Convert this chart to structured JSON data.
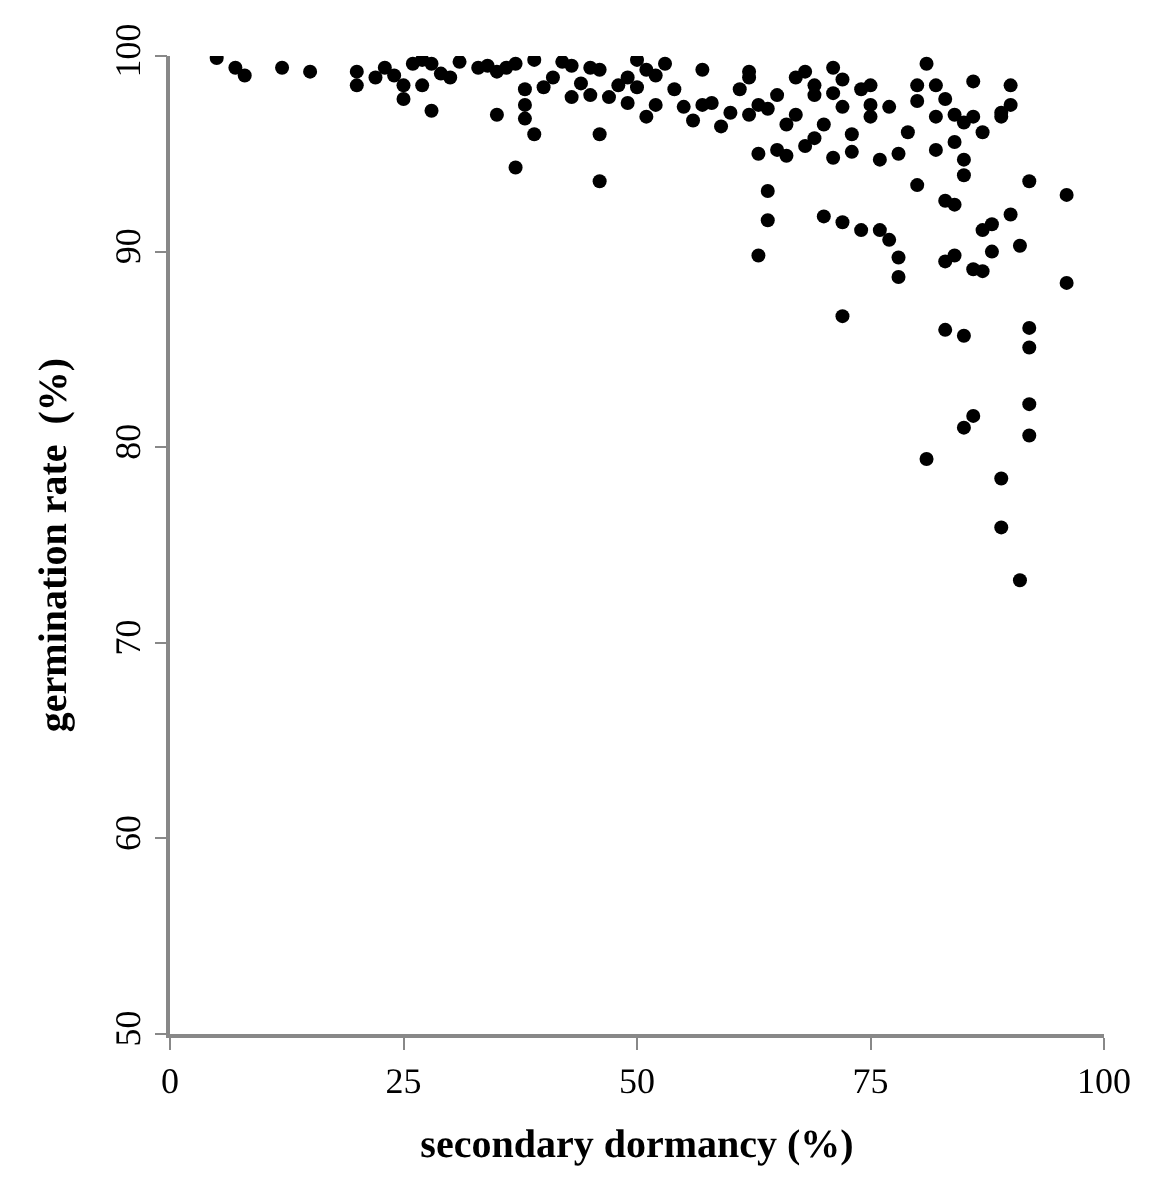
{
  "chart_data": {
    "type": "scatter",
    "xlabel": "secondary dormancy (%)",
    "ylabel": "germination rate  (%)",
    "xlim": [
      0,
      100
    ],
    "xticks": [
      0,
      25,
      50,
      75,
      100
    ],
    "ylim": [
      50,
      100
    ],
    "yticks": [
      50,
      60,
      70,
      80,
      90,
      100
    ],
    "marker": "circle",
    "series": [
      {
        "color": "#000000",
        "x": [
          5,
          7,
          8,
          12,
          15,
          20,
          20,
          22,
          23,
          24,
          25,
          25,
          26,
          27,
          27,
          28,
          28,
          29,
          30,
          31,
          33,
          34,
          35,
          35,
          36,
          37,
          37,
          38,
          38,
          38,
          39,
          39,
          40,
          41,
          42,
          43,
          43,
          44,
          45,
          45,
          46,
          46,
          46,
          47,
          48,
          49,
          49,
          50,
          50,
          51,
          51,
          52,
          52,
          53,
          54,
          55,
          56,
          57,
          57,
          58,
          59,
          60,
          61,
          62,
          62,
          62,
          63,
          63,
          63,
          64,
          64,
          64,
          65,
          65,
          66,
          66,
          67,
          67,
          68,
          68,
          69,
          69,
          69,
          70,
          70,
          71,
          71,
          71,
          72,
          72,
          72,
          72,
          73,
          73,
          74,
          74,
          75,
          75,
          75,
          76,
          76,
          77,
          77,
          78,
          78,
          78,
          79,
          80,
          80,
          80,
          81,
          81,
          82,
          82,
          82,
          83,
          83,
          83,
          83,
          84,
          84,
          84,
          84,
          85,
          85,
          85,
          85,
          85,
          86,
          86,
          86,
          86,
          87,
          87,
          87,
          88,
          88,
          89,
          89,
          89,
          89,
          90,
          90,
          90,
          91,
          91,
          92,
          92,
          92,
          92,
          92,
          96,
          96
        ],
        "values": [
          99.9,
          99.4,
          99.0,
          99.4,
          99.2,
          99.2,
          98.5,
          98.9,
          99.4,
          99.0,
          98.5,
          97.8,
          99.6,
          99.8,
          98.5,
          99.6,
          97.2,
          99.1,
          98.9,
          99.7,
          99.4,
          99.5,
          99.2,
          97.0,
          99.4,
          94.3,
          99.6,
          97.5,
          96.8,
          98.3,
          96.0,
          99.8,
          98.4,
          98.9,
          99.7,
          99.5,
          97.9,
          98.6,
          99.4,
          98.0,
          99.3,
          96.0,
          93.6,
          97.9,
          98.5,
          98.9,
          97.6,
          99.8,
          98.4,
          99.3,
          96.9,
          97.5,
          99.0,
          99.6,
          98.3,
          97.4,
          96.7,
          97.5,
          99.3,
          97.6,
          96.4,
          97.1,
          98.3,
          97.0,
          98.9,
          99.2,
          97.5,
          89.8,
          95.0,
          93.1,
          91.6,
          97.3,
          98.0,
          95.2,
          96.5,
          94.9,
          98.9,
          97.0,
          95.4,
          99.2,
          98.5,
          95.8,
          98.0,
          96.5,
          91.8,
          99.4,
          98.1,
          94.8,
          98.8,
          97.4,
          91.5,
          86.7,
          96.0,
          95.1,
          98.3,
          91.1,
          97.5,
          98.5,
          96.9,
          91.1,
          94.7,
          90.6,
          97.4,
          95.0,
          89.7,
          88.7,
          96.1,
          98.5,
          93.4,
          97.7,
          99.6,
          79.4,
          96.9,
          98.5,
          95.2,
          92.6,
          89.5,
          86.0,
          97.8,
          97.0,
          95.6,
          92.4,
          89.8,
          96.6,
          94.7,
          93.9,
          85.7,
          81.0,
          96.9,
          98.7,
          89.1,
          81.6,
          91.1,
          89.0,
          96.1,
          91.4,
          90.0,
          96.9,
          97.1,
          78.4,
          75.9,
          91.9,
          98.5,
          97.5,
          90.3,
          73.2,
          86.1,
          85.1,
          82.2,
          80.6,
          93.6,
          92.9,
          88.4
        ]
      }
    ]
  }
}
